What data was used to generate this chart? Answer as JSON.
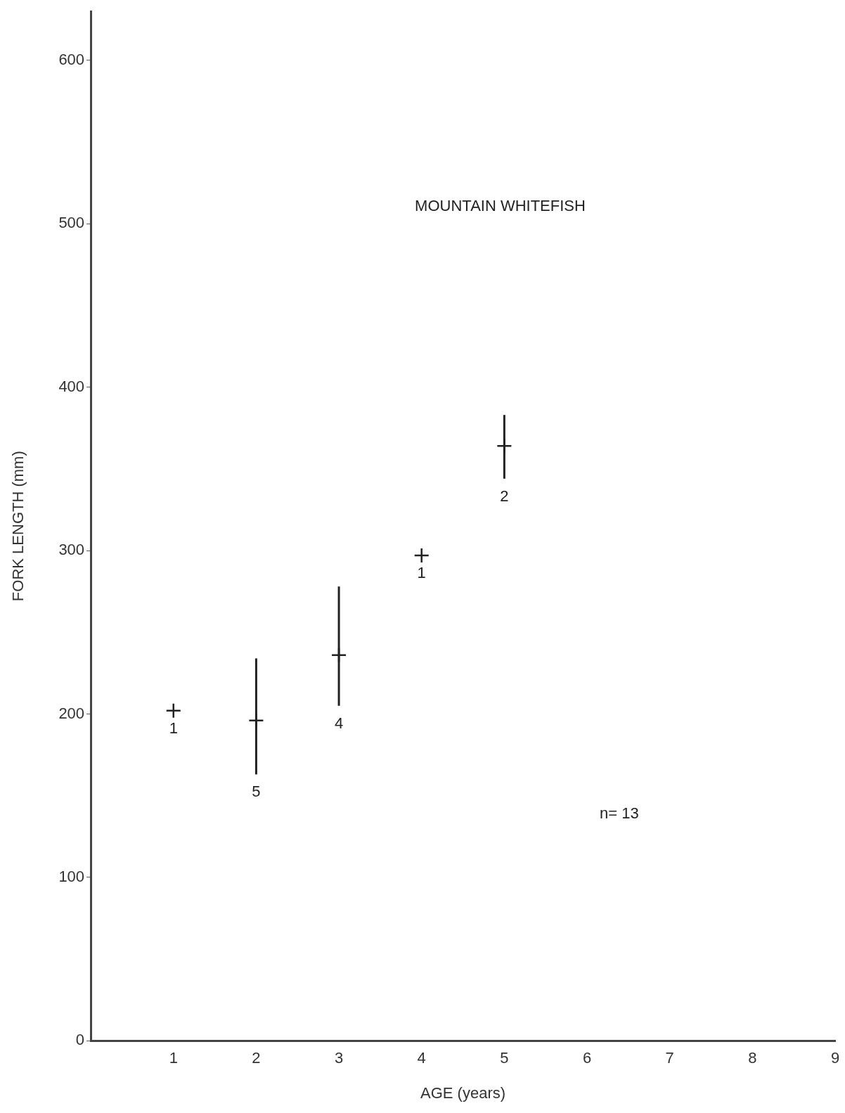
{
  "chart_data": {
    "type": "scatter",
    "title": "MOUNTAIN WHITEFISH",
    "xlabel": "AGE (years)",
    "ylabel": "FORK LENGTH (mm)",
    "x": [
      1,
      2,
      3,
      4,
      5
    ],
    "values": [
      202,
      196,
      236,
      297,
      364
    ],
    "errors": [
      null,
      [
        163,
        234
      ],
      [
        205,
        278
      ],
      null,
      [
        344,
        383
      ]
    ],
    "color": "#222222",
    "xlim": [
      0,
      9
    ],
    "xticks": [
      {
        "value": 0,
        "label": null
      },
      1,
      2,
      3,
      4,
      5,
      6,
      7,
      8,
      9
    ],
    "ylim": [
      0,
      630
    ],
    "yticks": [
      0,
      100,
      200,
      300,
      400,
      500,
      600
    ],
    "grid": false,
    "legend": false,
    "marker": "cross",
    "annotations": [
      "1",
      "5",
      "4",
      "1",
      "2",
      "n= 13"
    ]
  }
}
